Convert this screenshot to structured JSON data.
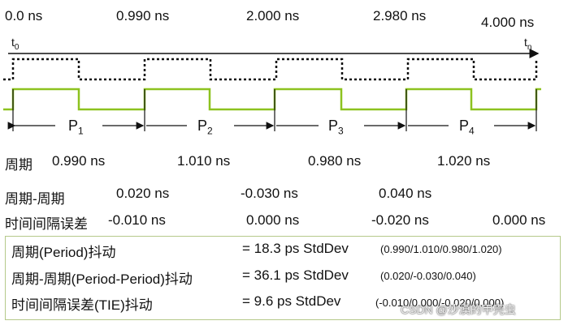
{
  "time_labels": [
    "0.0 ns",
    "0.990 ns",
    "2.000 ns",
    "2.980 ns",
    "4.000 ns"
  ],
  "t_start": {
    "base": "t",
    "sub": "0"
  },
  "t_end": {
    "base": "t",
    "sub": "n"
  },
  "periods": [
    {
      "base": "P",
      "sub": "1"
    },
    {
      "base": "P",
      "sub": "2"
    },
    {
      "base": "P",
      "sub": "3"
    },
    {
      "base": "P",
      "sub": "4"
    }
  ],
  "rows": {
    "period": {
      "label": "周期",
      "values": [
        "0.990 ns",
        "1.010 ns",
        "0.980 ns",
        "1.020 ns"
      ]
    },
    "c2c": {
      "label": "周期-周期",
      "values": [
        "0.020 ns",
        "-0.030 ns",
        "0.040 ns"
      ]
    },
    "tie": {
      "label": "时间间隔误差",
      "values": [
        "-0.010 ns",
        "0.000 ns",
        "-0.020 ns",
        "0.000 ns"
      ]
    }
  },
  "jitter": [
    {
      "label": "周期(Period)抖动",
      "value": "= 18.3 ps StdDev",
      "detail": "(0.990/1.010/0.980/1.020)"
    },
    {
      "label": "周期-周期(Period-Period)抖动",
      "value": "= 36.1 ps StdDev",
      "detail": "(0.020/-0.030/0.040)"
    },
    {
      "label": "时间间隔误差(TIE)抖动",
      "value": "= 9.6 ps StdDev",
      "detail": "(-0.010/0.000/-0.020/0.000)"
    }
  ],
  "watermark": "CSDN @沙漠的甲壳虫",
  "colors": {
    "signal": "#8dc21f",
    "ideal": "#111111",
    "box_border": "#b5c98a"
  }
}
